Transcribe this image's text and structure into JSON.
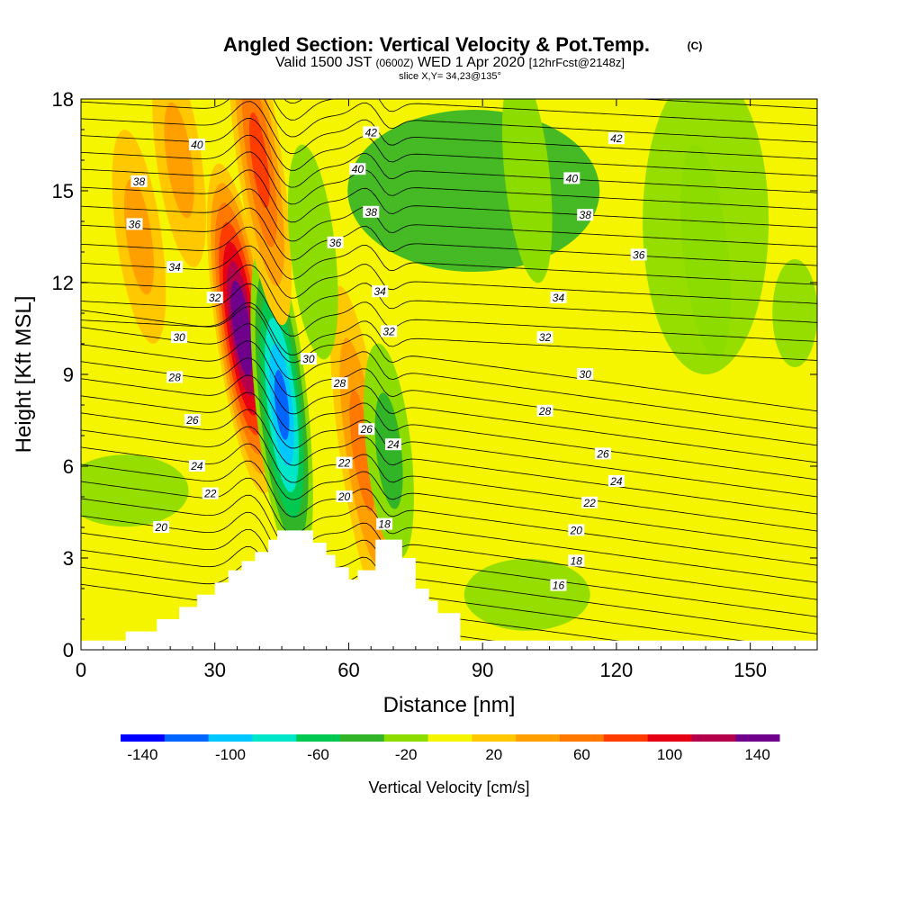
{
  "chart_data": {
    "type": "heatmap",
    "title": "Angled Section: Vertical Velocity & Pot.Temp.",
    "title_suffix": "(C)",
    "subtitle": {
      "valid": "Valid 1500 JST",
      "utc": "(0600Z)",
      "date": "WED 1 Apr 2020",
      "fcst": "[12hrFcst@2148z]"
    },
    "slice": "slice X,Y= 34,23@135°",
    "xlabel": "Distance [nm]",
    "ylabel": "Height [Kft MSL]",
    "xlim": [
      0,
      165
    ],
    "ylim": [
      0,
      18
    ],
    "x_ticks": [
      0,
      30,
      60,
      90,
      120,
      150
    ],
    "y_ticks": [
      0,
      3,
      6,
      9,
      12,
      15,
      18
    ],
    "x_tick_labels": [
      "0",
      "30",
      "60",
      "90",
      "120",
      "150"
    ],
    "y_tick_labels": [
      "0",
      "3",
      "6",
      "9",
      "12",
      "15",
      "18"
    ],
    "colorbar": {
      "title": "Vertical Velocity [cm/s]",
      "tick_labels": [
        "-140",
        "-100",
        "-60",
        "-20",
        "20",
        "60",
        "100",
        "140"
      ],
      "colors": [
        "#0000ff",
        "#0064ff",
        "#00c8ff",
        "#00e6c8",
        "#00c850",
        "#32b428",
        "#8cdc00",
        "#f5f500",
        "#ffc800",
        "#ffa000",
        "#ff7800",
        "#ff3c00",
        "#e60014",
        "#b4004b",
        "#6e008c"
      ]
    },
    "terrain_profile": [
      [
        0,
        0.3
      ],
      [
        10,
        0.3
      ],
      [
        10,
        0.6
      ],
      [
        17,
        0.6
      ],
      [
        17,
        1.0
      ],
      [
        22,
        1.0
      ],
      [
        22,
        1.4
      ],
      [
        26,
        1.4
      ],
      [
        26,
        1.8
      ],
      [
        30,
        1.8
      ],
      [
        30,
        2.2
      ],
      [
        33,
        2.2
      ],
      [
        33,
        2.6
      ],
      [
        36,
        2.6
      ],
      [
        36,
        2.9
      ],
      [
        39,
        2.9
      ],
      [
        39,
        3.2
      ],
      [
        42,
        3.2
      ],
      [
        42,
        3.6
      ],
      [
        44,
        3.6
      ],
      [
        44,
        3.9
      ],
      [
        52,
        3.9
      ],
      [
        52,
        3.5
      ],
      [
        55,
        3.5
      ],
      [
        55,
        3.1
      ],
      [
        57,
        3.1
      ],
      [
        57,
        2.7
      ],
      [
        60,
        2.7
      ],
      [
        60,
        2.3
      ],
      [
        62,
        2.3
      ],
      [
        62,
        2.6
      ],
      [
        66,
        2.6
      ],
      [
        66,
        3.6
      ],
      [
        72,
        3.6
      ],
      [
        72,
        3.0
      ],
      [
        75,
        3.0
      ],
      [
        75,
        2.0
      ],
      [
        78,
        2.0
      ],
      [
        78,
        1.6
      ],
      [
        80,
        1.6
      ],
      [
        80,
        1.2
      ],
      [
        85,
        1.2
      ],
      [
        85,
        0.3
      ],
      [
        165,
        0.3
      ]
    ],
    "velocity_features": [
      {
        "x": 36,
        "y": 10.5,
        "w": 160,
        "label": "updraft"
      },
      {
        "x": 45,
        "y": 8.0,
        "w": -120,
        "label": "downdraft"
      },
      {
        "x": 63,
        "y": 6.5,
        "w": 60,
        "label": "updraft"
      },
      {
        "x": 69,
        "y": 6.5,
        "w": -45,
        "label": "downdraft"
      },
      {
        "x": 40,
        "y": 16.0,
        "w": 80,
        "label": "updraft"
      },
      {
        "x": 13,
        "y": 13.5,
        "w": 40,
        "label": "updraft"
      },
      {
        "x": 22,
        "y": 16.0,
        "w": 40,
        "label": "updraft"
      },
      {
        "x": 52,
        "y": 13.0,
        "w": -20,
        "label": "downdraft"
      },
      {
        "x": 100,
        "y": 15.5,
        "w": -25,
        "label": "downdraft"
      },
      {
        "x": 140,
        "y": 13.0,
        "w": -20,
        "label": "downdraft"
      }
    ],
    "pot_temp_levels": [
      16,
      18,
      20,
      22,
      24,
      26,
      28,
      30,
      32,
      34,
      36,
      38,
      40,
      42
    ],
    "contour_labels": [
      {
        "text": "40",
        "x": 26,
        "y": 16.5
      },
      {
        "text": "38",
        "x": 13,
        "y": 15.3
      },
      {
        "text": "36",
        "x": 12,
        "y": 13.9
      },
      {
        "text": "34",
        "x": 21,
        "y": 12.5
      },
      {
        "text": "32",
        "x": 30,
        "y": 11.5
      },
      {
        "text": "30",
        "x": 22,
        "y": 10.2
      },
      {
        "text": "28",
        "x": 21,
        "y": 8.9
      },
      {
        "text": "26",
        "x": 25,
        "y": 7.5
      },
      {
        "text": "24",
        "x": 26,
        "y": 6.0
      },
      {
        "text": "22",
        "x": 29,
        "y": 5.1
      },
      {
        "text": "20",
        "x": 18,
        "y": 4.0
      },
      {
        "text": "42",
        "x": 65,
        "y": 16.9
      },
      {
        "text": "40",
        "x": 62,
        "y": 15.7
      },
      {
        "text": "38",
        "x": 65,
        "y": 14.3
      },
      {
        "text": "36",
        "x": 57,
        "y": 13.3
      },
      {
        "text": "34",
        "x": 67,
        "y": 11.7
      },
      {
        "text": "32",
        "x": 69,
        "y": 10.4
      },
      {
        "text": "30",
        "x": 51,
        "y": 9.5
      },
      {
        "text": "28",
        "x": 58,
        "y": 8.7
      },
      {
        "text": "26",
        "x": 64,
        "y": 7.2
      },
      {
        "text": "24",
        "x": 70,
        "y": 6.7
      },
      {
        "text": "22",
        "x": 59,
        "y": 6.1
      },
      {
        "text": "20",
        "x": 59,
        "y": 5.0
      },
      {
        "text": "18",
        "x": 68,
        "y": 4.1
      },
      {
        "text": "42",
        "x": 120,
        "y": 16.7
      },
      {
        "text": "40",
        "x": 110,
        "y": 15.4
      },
      {
        "text": "38",
        "x": 113,
        "y": 14.2
      },
      {
        "text": "36",
        "x": 125,
        "y": 12.9
      },
      {
        "text": "34",
        "x": 107,
        "y": 11.5
      },
      {
        "text": "32",
        "x": 104,
        "y": 10.2
      },
      {
        "text": "30",
        "x": 113,
        "y": 9.0
      },
      {
        "text": "28",
        "x": 104,
        "y": 7.8
      },
      {
        "text": "26",
        "x": 117,
        "y": 6.4
      },
      {
        "text": "24",
        "x": 120,
        "y": 5.5
      },
      {
        "text": "22",
        "x": 114,
        "y": 4.8
      },
      {
        "text": "20",
        "x": 111,
        "y": 3.9
      },
      {
        "text": "18",
        "x": 111,
        "y": 2.9
      },
      {
        "text": "16",
        "x": 107,
        "y": 2.1
      }
    ]
  }
}
